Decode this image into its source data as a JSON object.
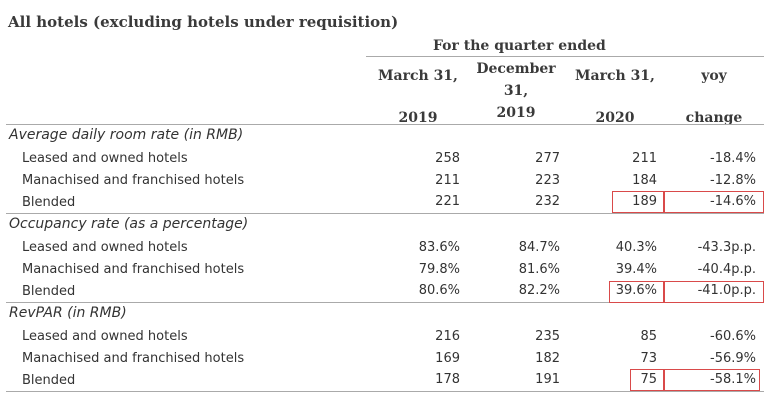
{
  "title": "All hotels (excluding hotels under requisition)",
  "subtitle": "For the quarter ended",
  "columns": [
    {
      "lines": [
        "March 31,",
        "",
        "2019"
      ]
    },
    {
      "lines": [
        "December",
        "31,",
        "2019"
      ]
    },
    {
      "lines": [
        "March 31,",
        "",
        "2020"
      ]
    },
    {
      "lines": [
        "yoy",
        "",
        "change"
      ]
    }
  ],
  "sections": [
    {
      "title": "Average daily room rate (in RMB)",
      "rows": [
        {
          "label": "Leased and owned hotels",
          "values": [
            "258",
            "277",
            "211",
            "-18.4%"
          ]
        },
        {
          "label": "Manachised and franchised hotels",
          "values": [
            "211",
            "223",
            "184",
            "-12.8%"
          ]
        },
        {
          "label": "Blended",
          "values": [
            "221",
            "232",
            "189",
            "-14.6%"
          ]
        }
      ]
    },
    {
      "title": "Occupancy rate (as a percentage)",
      "rows": [
        {
          "label": "Leased and owned hotels",
          "values": [
            "83.6%",
            "84.7%",
            "40.3%",
            "-43.3p.p."
          ]
        },
        {
          "label": "Manachised and franchised hotels",
          "values": [
            "79.8%",
            "81.6%",
            "39.4%",
            "-40.4p.p."
          ]
        },
        {
          "label": "Blended",
          "values": [
            "80.6%",
            "82.2%",
            "39.6%",
            "-41.0p.p."
          ]
        }
      ]
    },
    {
      "title": "RevPAR (in RMB)",
      "rows": [
        {
          "label": "Leased and owned hotels",
          "values": [
            "216",
            "235",
            "85",
            "-60.6%"
          ]
        },
        {
          "label": "Manachised and franchised hotels",
          "values": [
            "169",
            "182",
            "73",
            "-56.9%"
          ]
        },
        {
          "label": "Blended",
          "values": [
            "178",
            "191",
            "75",
            "-58.1%"
          ]
        }
      ]
    }
  ],
  "highlight_color": "#d94a4a"
}
